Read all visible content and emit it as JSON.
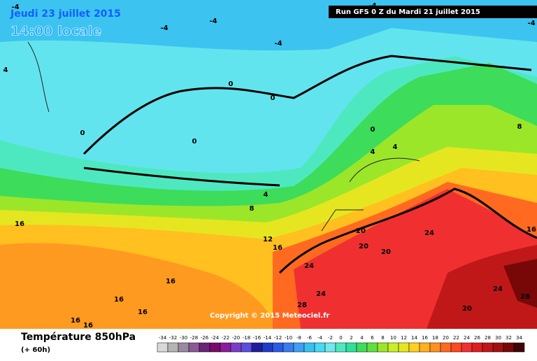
{
  "header": {
    "date": "Jeudi 23 juillet 2015",
    "time": "14:00 locale",
    "run": "Run GFS 0 Z du Mardi 21 juillet 2015"
  },
  "map": {
    "contour_labels": [
      -4,
      -4,
      -4,
      -4,
      -4,
      -4,
      4,
      0,
      0,
      0,
      0,
      0,
      4,
      4,
      8,
      4,
      8,
      16,
      12,
      16,
      20,
      20,
      24,
      20,
      16,
      24,
      16,
      24,
      24,
      28,
      16,
      16,
      16,
      16,
      28,
      20
    ]
  },
  "copyright": "Copyright © 2015 Meteociel.fr",
  "legend": {
    "title": "Température 850hPa",
    "subtitle": "(+ 60h)",
    "ticks": [
      -34,
      -32,
      -30,
      -28,
      -26,
      -24,
      -22,
      -20,
      -18,
      -16,
      -14,
      -12,
      -10,
      -8,
      -6,
      -4,
      -2,
      0,
      2,
      4,
      6,
      8,
      10,
      12,
      14,
      16,
      18,
      20,
      22,
      24,
      26,
      28,
      30,
      32,
      34
    ],
    "colors": [
      "#d8d8d8",
      "#b4b4b4",
      "#9a8aa0",
      "#8a5a96",
      "#6a2478",
      "#780a6a",
      "#8c1a9c",
      "#7a3cc8",
      "#5a4ee0",
      "#1e1e9c",
      "#1e3cc8",
      "#2a5ae6",
      "#3a7cf0",
      "#3ca0f4",
      "#38c0f0",
      "#4ad8f4",
      "#70e8ee",
      "#4ee8c0",
      "#2ee09a",
      "#3ddc5a",
      "#60e040",
      "#9ce62a",
      "#c8ee28",
      "#e6e620",
      "#ffd020",
      "#ffb020",
      "#ff9020",
      "#ff6a20",
      "#ff4820",
      "#f03030",
      "#dc2020",
      "#c01818",
      "#a01010",
      "#780808",
      "#400404"
    ]
  }
}
